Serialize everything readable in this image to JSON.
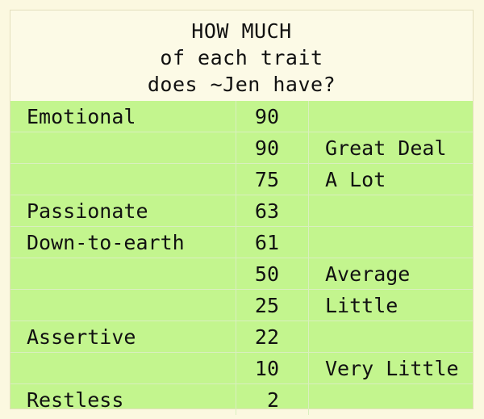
{
  "chart_data": {
    "type": "table",
    "title_lines": [
      "HOW MUCH",
      "of each trait",
      "does ~Jen have?"
    ],
    "rows": [
      {
        "trait": "Emotional",
        "value": "90",
        "scale": ""
      },
      {
        "trait": "",
        "value": "90",
        "scale": "Great Deal"
      },
      {
        "trait": "",
        "value": "75",
        "scale": "A Lot"
      },
      {
        "trait": "Passionate",
        "value": "63",
        "scale": ""
      },
      {
        "trait": "Down-to-earth",
        "value": "61",
        "scale": ""
      },
      {
        "trait": "",
        "value": "50",
        "scale": "Average"
      },
      {
        "trait": "",
        "value": "25",
        "scale": "Little"
      },
      {
        "trait": "Assertive",
        "value": "22",
        "scale": ""
      },
      {
        "trait": "",
        "value": "10",
        "scale": "Very Little"
      },
      {
        "trait": "Restless",
        "value": "2",
        "scale": ""
      }
    ]
  },
  "colors": {
    "title_background": "#fcfae6",
    "table_background": "#c3f58e",
    "grid_lines": "#d9efbf",
    "text": "#111111"
  }
}
